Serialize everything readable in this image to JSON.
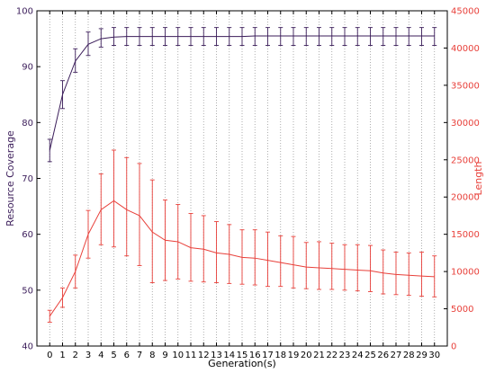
{
  "chart_data": {
    "type": "line",
    "xlabel": "Generation(s)",
    "x": [
      0,
      1,
      2,
      3,
      4,
      5,
      6,
      7,
      8,
      9,
      10,
      11,
      12,
      13,
      14,
      15,
      16,
      17,
      18,
      19,
      20,
      21,
      22,
      23,
      24,
      25,
      26,
      27,
      28,
      29,
      30
    ],
    "x_ticks": [
      "0",
      "1",
      "2",
      "3",
      "4",
      "5",
      "6",
      "7",
      "8",
      "9",
      "10",
      "11",
      "12",
      "13",
      "14",
      "15",
      "16",
      "17",
      "18",
      "19",
      "20",
      "21",
      "22",
      "23",
      "24",
      "25",
      "26",
      "27",
      "28",
      "29",
      "30"
    ],
    "xlim": [
      -1,
      31
    ],
    "grid": "vertical dotted",
    "axes": {
      "left": {
        "label": "Resource Coverage",
        "ylim": [
          40,
          100
        ],
        "ticks": [
          "40",
          "50",
          "60",
          "70",
          "80",
          "90",
          "100"
        ],
        "color": "#3b1d5a"
      },
      "right": {
        "label": "Length",
        "ylim": [
          0,
          45000
        ],
        "ticks": [
          "0",
          "5000",
          "10000",
          "15000",
          "20000",
          "25000",
          "30000",
          "35000",
          "40000",
          "45000"
        ],
        "color": "#e8403a"
      }
    },
    "series": [
      {
        "axis": "left",
        "color": "#3b1d5a",
        "values": [
          75.0,
          85.0,
          91.0,
          94.0,
          95.0,
          95.3,
          95.4,
          95.4,
          95.4,
          95.4,
          95.4,
          95.4,
          95.4,
          95.4,
          95.4,
          95.4,
          95.5,
          95.5,
          95.5,
          95.5,
          95.5,
          95.5,
          95.5,
          95.5,
          95.5,
          95.5,
          95.5,
          95.5,
          95.5,
          95.5,
          95.5
        ],
        "err_low": [
          73.0,
          82.5,
          89.0,
          92.0,
          93.5,
          93.8,
          93.8,
          93.8,
          93.8,
          93.8,
          93.8,
          93.8,
          93.8,
          93.8,
          93.8,
          93.8,
          93.8,
          93.8,
          93.8,
          93.8,
          93.8,
          93.8,
          93.8,
          93.8,
          93.8,
          93.8,
          93.8,
          93.8,
          93.8,
          93.8,
          93.8
        ],
        "err_high": [
          77.0,
          87.5,
          93.2,
          96.2,
          96.8,
          97.0,
          97.0,
          97.0,
          97.0,
          97.0,
          97.0,
          97.0,
          97.0,
          97.0,
          97.0,
          97.0,
          97.0,
          97.0,
          97.0,
          97.0,
          97.0,
          97.0,
          97.0,
          97.0,
          97.0,
          97.0,
          97.0,
          97.0,
          97.0,
          97.0,
          97.0
        ]
      },
      {
        "axis": "right",
        "color": "#e8403a",
        "values": [
          4000,
          6500,
          10000,
          15000,
          18300,
          19500,
          18300,
          17500,
          15300,
          14200,
          14000,
          13200,
          13000,
          12500,
          12300,
          11900,
          11800,
          11500,
          11200,
          10900,
          10600,
          10500,
          10400,
          10300,
          10200,
          10100,
          9800,
          9600,
          9500,
          9400,
          9300
        ],
        "err_low": [
          3200,
          5200,
          7800,
          11800,
          13600,
          13300,
          12100,
          10800,
          8500,
          8800,
          9000,
          8700,
          8600,
          8500,
          8400,
          8300,
          8200,
          8000,
          8000,
          7800,
          7700,
          7600,
          7600,
          7500,
          7400,
          7300,
          7000,
          6900,
          6800,
          6700,
          6600
        ],
        "err_high": [
          4800,
          7800,
          12200,
          18200,
          23100,
          26300,
          25300,
          24500,
          22300,
          19600,
          19000,
          17800,
          17500,
          16700,
          16300,
          15600,
          15600,
          15300,
          14800,
          14700,
          13900,
          14000,
          13800,
          13600,
          13600,
          13500,
          12900,
          12600,
          12500,
          12600,
          12100
        ]
      }
    ]
  }
}
